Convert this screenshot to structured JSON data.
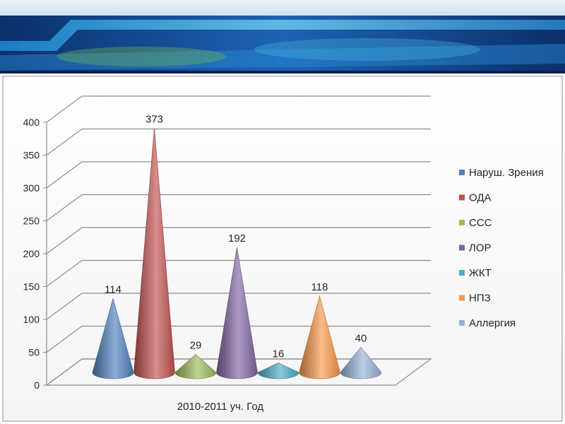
{
  "colors": {
    "banner_dark": "#0b2f6b",
    "banner_mid": "#1e64b4",
    "banner_light": "#49b6e0",
    "banner_green": "#7cc04a",
    "grid": "#8c8c8c"
  },
  "chart_data": {
    "type": "bar",
    "style": "3d-cone",
    "categories": [
      "2010-2011 уч. Год"
    ],
    "xlabel": "2010-2011 уч. Год",
    "ylim": [
      0,
      400
    ],
    "yticks": [
      0,
      50,
      100,
      150,
      200,
      250,
      300,
      350,
      400
    ],
    "grid": true,
    "legend_position": "right",
    "series": [
      {
        "name": "Наруш. Зрения",
        "values": [
          114
        ],
        "color": "#4f81bd"
      },
      {
        "name": "ОДА",
        "values": [
          373
        ],
        "color": "#c0504d"
      },
      {
        "name": "ССС",
        "values": [
          29
        ],
        "color": "#9bbb59"
      },
      {
        "name": "ЛОР",
        "values": [
          192
        ],
        "color": "#8064a2"
      },
      {
        "name": "ЖКТ",
        "values": [
          16
        ],
        "color": "#4bacc6"
      },
      {
        "name": "НПЗ",
        "values": [
          118
        ],
        "color": "#f79646"
      },
      {
        "name": "Аллергия",
        "values": [
          40
        ],
        "color": "#95b3d7"
      }
    ]
  }
}
